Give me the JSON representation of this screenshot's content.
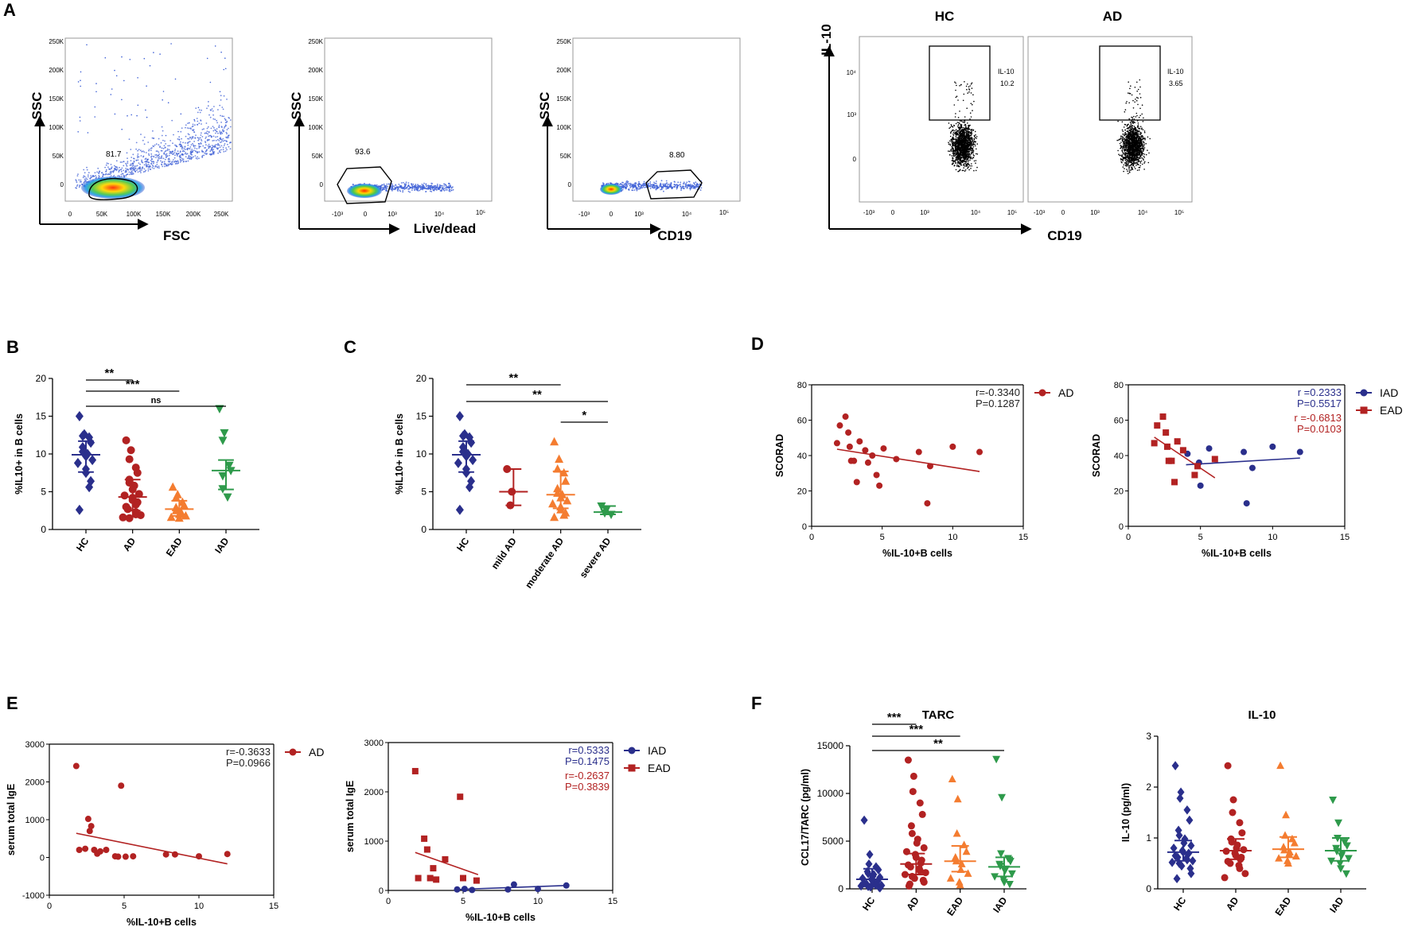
{
  "panels": {
    "A": "A",
    "B": "B",
    "C": "C",
    "D": "D",
    "E": "E",
    "F": "F"
  },
  "flow": {
    "p1": {
      "gate": "81.7",
      "ylabel": "SSC",
      "xlabel": "FSC",
      "yticks": [
        "250K",
        "200K",
        "150K",
        "100K",
        "50K",
        "0"
      ],
      "xticks": [
        "0",
        "50K",
        "100K",
        "150K",
        "200K",
        "250K"
      ]
    },
    "p2": {
      "gate": "93.6",
      "ylabel": "SSC",
      "xlabel": "Live/dead",
      "yticks": [
        "250K",
        "200K",
        "150K",
        "100K",
        "50K",
        "0"
      ]
    },
    "p3": {
      "gate": "8.80",
      "ylabel": "SSC",
      "xlabel": "CD19",
      "yticks": [
        "250K",
        "200K",
        "150K",
        "100K",
        "50K",
        "0"
      ]
    },
    "p4": {
      "ylabel": "IL-10",
      "xlabel": "CD19",
      "hc_title": "HC",
      "ad_title": "AD",
      "hc_gate_name": "IL-10",
      "hc_gate_val": "10.2",
      "ad_gate_name": "IL-10",
      "ad_gate_val": "3.65"
    }
  },
  "chart_data": [
    {
      "id": "B",
      "type": "scatter",
      "title": "",
      "ylabel": "%IL10+ in B cells",
      "ylim": [
        0,
        20
      ],
      "yticks": [
        0,
        5,
        10,
        15,
        20
      ],
      "categories": [
        "HC",
        "AD",
        "EAD",
        "IAD"
      ],
      "colors": [
        "#2a2f8c",
        "#b22222",
        "#f47c30",
        "#2e9a4b"
      ],
      "markers": [
        "diamond",
        "circle",
        "triangle",
        "triangle-down"
      ],
      "points": [
        [
          15.0,
          12.6,
          12.4,
          12.2,
          11.5,
          10.9,
          10.3,
          10.0,
          9.7,
          9.2,
          8.8,
          8.0,
          7.5,
          6.4,
          5.6,
          2.6
        ],
        [
          11.8,
          10.5,
          9.3,
          8.2,
          7.5,
          6.6,
          6.2,
          5.8,
          5.3,
          4.7,
          4.5,
          4.2,
          3.9,
          3.6,
          3.3,
          3.0,
          2.7,
          2.3,
          2.0,
          1.9,
          1.6,
          1.5
        ],
        [
          5.6,
          4.6,
          4.2,
          3.6,
          3.2,
          2.9,
          2.5,
          2.3,
          2.0,
          1.8,
          1.6,
          1.5
        ],
        [
          16.0,
          12.8,
          11.8,
          8.5,
          7.8,
          7.1,
          5.4,
          4.3
        ]
      ],
      "medians": [
        9.9,
        4.3,
        2.7,
        7.8
      ],
      "iqr": [
        [
          7.6,
          11.7
        ],
        [
          2.5,
          6.6
        ],
        [
          1.8,
          3.8
        ],
        [
          5.3,
          9.2
        ]
      ],
      "significance": [
        {
          "from": 0,
          "to": 1,
          "label": "**"
        },
        {
          "from": 0,
          "to": 2,
          "label": "***"
        },
        {
          "from": 0,
          "to": 3,
          "label": "ns"
        }
      ]
    },
    {
      "id": "C",
      "type": "scatter",
      "title": "",
      "ylabel": "%IL10+ in B cells",
      "ylim": [
        0,
        20
      ],
      "yticks": [
        0,
        5,
        10,
        15,
        20
      ],
      "categories": [
        "HC",
        "mild AD",
        "moderate AD",
        "severe AD"
      ],
      "colors": [
        "#2a2f8c",
        "#b22222",
        "#f47c30",
        "#2e9a4b"
      ],
      "markers": [
        "diamond",
        "circle",
        "triangle",
        "triangle-down"
      ],
      "points": [
        [
          15.0,
          12.6,
          12.4,
          12.2,
          11.5,
          10.9,
          10.3,
          10.0,
          9.7,
          9.2,
          8.8,
          8.0,
          7.5,
          6.4,
          5.6,
          2.6
        ],
        [
          8.0,
          5.0,
          3.2
        ],
        [
          11.6,
          9.3,
          8.0,
          7.5,
          6.4,
          5.4,
          4.8,
          4.6,
          4.2,
          3.8,
          3.4,
          3.0,
          2.6,
          2.2,
          1.9,
          1.6
        ],
        [
          3.1,
          2.6,
          2.2,
          2.0
        ]
      ],
      "medians": [
        9.9,
        5.0,
        4.6,
        2.3
      ],
      "iqr": [
        [
          7.6,
          11.7
        ],
        [
          3.2,
          8.0
        ],
        [
          2.8,
          7.7
        ],
        [
          2.0,
          3.1
        ]
      ],
      "significance": [
        {
          "from": 0,
          "to": 2,
          "label": "**"
        },
        {
          "from": 0,
          "to": 3,
          "label": "**"
        },
        {
          "from": 2,
          "to": 3,
          "label": "*"
        }
      ]
    },
    {
      "id": "D1",
      "type": "scatter",
      "title": "",
      "xlabel": "%IL-10+B cells",
      "ylabel": "SCORAD",
      "xlim": [
        0,
        15
      ],
      "ylim": [
        0,
        80
      ],
      "xticks": [
        0,
        5,
        10,
        15
      ],
      "yticks": [
        0,
        20,
        40,
        60,
        80
      ],
      "series": [
        {
          "name": "AD",
          "color": "#b22222",
          "x": [
            1.8,
            2.0,
            2.4,
            2.6,
            2.7,
            2.8,
            3.0,
            3.2,
            3.4,
            3.8,
            4.0,
            4.3,
            4.6,
            4.8,
            5.1,
            6.0,
            7.6,
            8.2,
            8.4,
            10.0,
            11.9
          ],
          "y": [
            47,
            57,
            62,
            53,
            45,
            37,
            37,
            25,
            48,
            43,
            36,
            40,
            29,
            23,
            44,
            38,
            42,
            13,
            34,
            45,
            42
          ],
          "fit": [
            [
              1.8,
              43.6
            ],
            [
              11.9,
              31.0
            ]
          ]
        }
      ],
      "stats": [
        {
          "r": "r=-0.3340",
          "p": "P=0.1287",
          "color": "#222222"
        }
      ]
    },
    {
      "id": "D2",
      "type": "scatter",
      "title": "",
      "xlabel": "%IL-10+B cells",
      "ylabel": "SCORAD",
      "xlim": [
        0,
        15
      ],
      "ylim": [
        0,
        80
      ],
      "xticks": [
        0,
        5,
        10,
        15
      ],
      "yticks": [
        0,
        20,
        40,
        60,
        80
      ],
      "series": [
        {
          "name": "IAD",
          "color": "#2a2f8c",
          "marker": "circle",
          "x": [
            4.1,
            4.9,
            5.0,
            5.6,
            8.0,
            8.2,
            8.6,
            10.0,
            11.9
          ],
          "y": [
            41,
            36,
            23,
            44,
            42,
            13,
            33,
            45,
            42
          ],
          "fit": [
            [
              4.0,
              34.8
            ],
            [
              11.9,
              38.6
            ]
          ]
        },
        {
          "name": "EAD",
          "color": "#b22222",
          "marker": "square",
          "x": [
            1.8,
            2.0,
            2.4,
            2.6,
            2.7,
            2.8,
            3.0,
            3.2,
            3.4,
            3.8,
            4.6,
            4.8,
            6.0
          ],
          "y": [
            47,
            57,
            62,
            53,
            45,
            37,
            37,
            25,
            48,
            43,
            29,
            34,
            38
          ],
          "fit": [
            [
              1.8,
              50.4
            ],
            [
              6.0,
              27.4
            ]
          ]
        }
      ],
      "stats": [
        {
          "r": "r =0.2333",
          "p": "P=0.5517",
          "color": "#2a2f8c"
        },
        {
          "r": "r =-0.6813",
          "p": "P=0.0103",
          "color": "#b22222"
        }
      ]
    },
    {
      "id": "E1",
      "type": "scatter",
      "title": "",
      "xlabel": "%IL-10+B cells",
      "ylabel": "serum total IgE",
      "xlim": [
        0,
        15
      ],
      "ylim": [
        -1000,
        3000
      ],
      "xticks": [
        0,
        5,
        10,
        15
      ],
      "yticks": [
        -1000,
        0,
        1000,
        2000,
        3000
      ],
      "series": [
        {
          "name": "AD",
          "color": "#b22222",
          "x": [
            1.8,
            2.0,
            2.4,
            2.6,
            2.7,
            2.8,
            3.0,
            3.2,
            3.4,
            3.8,
            4.4,
            4.6,
            4.8,
            5.1,
            5.6,
            7.8,
            8.4,
            10.0,
            11.9
          ],
          "y": [
            2420,
            200,
            230,
            1020,
            700,
            830,
            200,
            100,
            160,
            200,
            30,
            20,
            1900,
            20,
            30,
            80,
            80,
            30,
            90
          ],
          "fit": [
            [
              1.8,
              640
            ],
            [
              11.9,
              -170
            ]
          ]
        }
      ],
      "stats": [
        {
          "r": "r=-0.3633",
          "p": "P=0.0966",
          "color": "#222222"
        }
      ]
    },
    {
      "id": "E2",
      "type": "scatter",
      "title": "",
      "xlabel": "%IL-10+B cells",
      "ylabel": "serum total IgE",
      "xlim": [
        0,
        15
      ],
      "ylim": [
        0,
        3000
      ],
      "xticks": [
        0,
        5,
        10,
        15
      ],
      "yticks": [
        0,
        1000,
        2000,
        3000
      ],
      "series": [
        {
          "name": "IAD",
          "color": "#2a2f8c",
          "marker": "circle",
          "x": [
            4.6,
            5.1,
            5.6,
            8.0,
            8.4,
            10.0,
            11.9
          ],
          "y": [
            20,
            30,
            10,
            20,
            120,
            30,
            100
          ],
          "fit": [
            [
              4.6,
              20
            ],
            [
              11.9,
              100
            ]
          ]
        },
        {
          "name": "EAD",
          "color": "#b22222",
          "marker": "square",
          "x": [
            1.8,
            2.0,
            2.4,
            2.6,
            2.8,
            3.0,
            3.2,
            3.8,
            4.8,
            5.0,
            5.9
          ],
          "y": [
            2420,
            250,
            1050,
            830,
            250,
            450,
            220,
            630,
            1900,
            250,
            200
          ],
          "fit": [
            [
              1.8,
              770
            ],
            [
              6.0,
              320
            ]
          ]
        }
      ],
      "stats": [
        {
          "r": "r=0.5333",
          "p": "P=0.1475",
          "color": "#2a2f8c"
        },
        {
          "r": "r=-0.2637",
          "p": "P=0.3839",
          "color": "#b22222"
        }
      ]
    },
    {
      "id": "F1",
      "type": "scatter",
      "title": "TARC",
      "ylabel": "CCL17/TARC (pg/ml)",
      "ylim": [
        0,
        15000
      ],
      "yticks": [
        0,
        5000,
        10000,
        15000
      ],
      "categories": [
        "HC",
        "AD",
        "EAD",
        "IAD"
      ],
      "colors": [
        "#2a2f8c",
        "#b22222",
        "#f47c30",
        "#2e9a4b"
      ],
      "markers": [
        "diamond",
        "circle",
        "triangle",
        "triangle-down"
      ],
      "points": [
        [
          7200,
          3600,
          2600,
          2300,
          2000,
          1800,
          1600,
          1500,
          1300,
          1200,
          1100,
          1000,
          900,
          800,
          700,
          600,
          500,
          450,
          400,
          350,
          300,
          250,
          200,
          150,
          100
        ],
        [
          13500,
          11800,
          10200,
          9000,
          7800,
          6600,
          5800,
          5200,
          4800,
          4300,
          3900,
          3600,
          3300,
          3000,
          2700,
          2500,
          2300,
          2100,
          1900,
          1700,
          1500,
          1300,
          1100,
          900,
          700,
          500,
          300
        ],
        [
          11500,
          9400,
          5800,
          4600,
          3900,
          3300,
          2900,
          2600,
          2000,
          1600,
          1100,
          700,
          400
        ],
        [
          13600,
          9600,
          3700,
          3200,
          2900,
          2600,
          2400,
          2100,
          1900,
          1600,
          1300,
          1000,
          700,
          500
        ]
      ],
      "medians": [
        1000,
        2600,
        2900,
        2300
      ],
      "iqr": [
        [
          500,
          2100
        ],
        [
          1500,
          3700
        ],
        [
          1800,
          4500
        ],
        [
          1300,
          3300
        ]
      ],
      "significance": [
        {
          "from": 0,
          "to": 1,
          "label": "***"
        },
        {
          "from": 0,
          "to": 2,
          "label": "***"
        },
        {
          "from": 0,
          "to": 3,
          "label": "**"
        }
      ]
    },
    {
      "id": "F2",
      "type": "scatter",
      "title": "IL-10",
      "ylabel": "IL-10 (pg/ml)",
      "ylim": [
        0,
        3
      ],
      "yticks": [
        0,
        1,
        2,
        3
      ],
      "categories": [
        "HC",
        "AD",
        "EAD",
        "IAD"
      ],
      "colors": [
        "#2a2f8c",
        "#b22222",
        "#f47c30",
        "#2e9a4b"
      ],
      "markers": [
        "diamond",
        "circle",
        "triangle",
        "triangle-down"
      ],
      "points": [
        [
          2.42,
          1.9,
          1.78,
          1.55,
          1.35,
          1.15,
          1.05,
          0.98,
          0.9,
          0.85,
          0.8,
          0.75,
          0.72,
          0.7,
          0.68,
          0.65,
          0.62,
          0.6,
          0.57,
          0.55,
          0.52,
          0.5,
          0.45,
          0.4,
          0.3,
          0.2
        ],
        [
          2.42,
          1.75,
          1.5,
          1.3,
          1.1,
          0.98,
          0.92,
          0.86,
          0.8,
          0.77,
          0.74,
          0.7,
          0.66,
          0.62,
          0.58,
          0.54,
          0.5,
          0.46,
          0.4,
          0.3,
          0.22
        ],
        [
          2.42,
          1.45,
          1.05,
          0.98,
          0.9,
          0.82,
          0.76,
          0.72,
          0.68,
          0.64,
          0.6,
          0.55,
          0.5
        ],
        [
          1.75,
          1.3,
          1.0,
          0.92,
          0.85,
          0.8,
          0.74,
          0.7,
          0.65,
          0.6,
          0.55,
          0.5,
          0.4,
          0.3
        ]
      ],
      "medians": [
        0.72,
        0.75,
        0.78,
        0.75
      ],
      "iqr": [
        [
          0.55,
          0.95
        ],
        [
          0.58,
          0.98
        ],
        [
          0.62,
          1.02
        ],
        [
          0.55,
          1.0
        ]
      ],
      "significance": []
    }
  ]
}
